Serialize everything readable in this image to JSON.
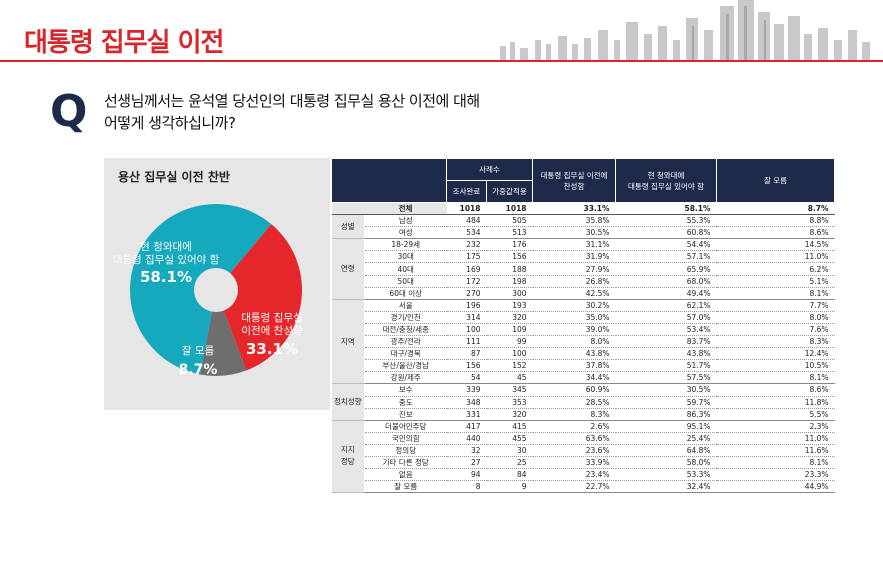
{
  "page_title": "대통령 집무실 이전",
  "question": {
    "mark": "Q",
    "line1": "선생님께서는 윤석열 당선인의 대통령 집무실 용산 이전에 대해",
    "line2": "어떻게 생각하십니까?"
  },
  "colors": {
    "accent": "#d7262c",
    "navy": "#1e2a4a",
    "teal": "#16a8bd",
    "red": "#e5262b",
    "gray": "#6e6e6e"
  },
  "pie": {
    "title": "용산 집무실 이전 찬반",
    "slices": [
      {
        "label_lines": [
          "현 청와대에",
          "대통령 집무실 있어야 함"
        ],
        "pct_text": "58.1%",
        "value": 58.1,
        "color": "#16a8bd"
      },
      {
        "label_lines": [
          "대통령 집무실",
          "이전에 찬성함"
        ],
        "pct_text": "33.1%",
        "value": 33.1,
        "color": "#e5262b"
      },
      {
        "label_lines": [
          "잘 모름"
        ],
        "pct_text": "8.7%",
        "value": 8.7,
        "color": "#6e6e6e"
      }
    ]
  },
  "table": {
    "header": {
      "sample": "사례수",
      "completed": "조사완료",
      "weighted": "가중값적용",
      "col_agree": [
        "대통령 집무실 이전에",
        "찬성함"
      ],
      "col_stay": [
        "현 청와대에",
        "대통령 집무실 있어야 함"
      ],
      "col_unknown": "잘 모름"
    },
    "total": {
      "label": "전체",
      "cells": [
        "1018",
        "1018",
        "33.1%",
        "58.1%",
        "8.7%"
      ]
    },
    "groups": [
      {
        "name": "성별",
        "rows": [
          {
            "label": "남성",
            "cells": [
              "484",
              "505",
              "35.8%",
              "55.3%",
              "8.8%"
            ]
          },
          {
            "label": "여성",
            "cells": [
              "534",
              "513",
              "30.5%",
              "60.8%",
              "8.6%"
            ]
          }
        ]
      },
      {
        "name": "연령",
        "rows": [
          {
            "label": "18-29세",
            "cells": [
              "232",
              "176",
              "31.1%",
              "54.4%",
              "14.5%"
            ]
          },
          {
            "label": "30대",
            "cells": [
              "175",
              "156",
              "31.9%",
              "57.1%",
              "11.0%"
            ]
          },
          {
            "label": "40대",
            "cells": [
              "169",
              "188",
              "27.9%",
              "65.9%",
              "6.2%"
            ]
          },
          {
            "label": "50대",
            "cells": [
              "172",
              "198",
              "26.8%",
              "68.0%",
              "5.1%"
            ]
          },
          {
            "label": "60대 이상",
            "cells": [
              "270",
              "300",
              "42.5%",
              "49.4%",
              "8.1%"
            ]
          }
        ]
      },
      {
        "name": "지역",
        "rows": [
          {
            "label": "서울",
            "cells": [
              "196",
              "193",
              "30.2%",
              "62.1%",
              "7.7%"
            ]
          },
          {
            "label": "경기/인천",
            "cells": [
              "314",
              "320",
              "35.0%",
              "57.0%",
              "8.0%"
            ]
          },
          {
            "label": "대전/충청/세종",
            "cells": [
              "100",
              "109",
              "39.0%",
              "53.4%",
              "7.6%"
            ]
          },
          {
            "label": "광주/전라",
            "cells": [
              "111",
              "99",
              "8.0%",
              "83.7%",
              "8.3%"
            ]
          },
          {
            "label": "대구/경북",
            "cells": [
              "87",
              "100",
              "43.8%",
              "43.8%",
              "12.4%"
            ]
          },
          {
            "label": "부산/울산/경남",
            "cells": [
              "156",
              "152",
              "37.8%",
              "51.7%",
              "10.5%"
            ]
          },
          {
            "label": "강원/제주",
            "cells": [
              "54",
              "45",
              "34.4%",
              "57.5%",
              "8.1%"
            ]
          }
        ]
      },
      {
        "name": "정치성향",
        "rows": [
          {
            "label": "보수",
            "cells": [
              "339",
              "345",
              "60.9%",
              "30.5%",
              "8.6%"
            ]
          },
          {
            "label": "중도",
            "cells": [
              "348",
              "353",
              "28.5%",
              "59.7%",
              "11.8%"
            ]
          },
          {
            "label": "진보",
            "cells": [
              "331",
              "320",
              "8.3%",
              "86.3%",
              "5.5%"
            ]
          }
        ]
      },
      {
        "name": "지지\n정당",
        "rows": [
          {
            "label": "더불어민주당",
            "cells": [
              "417",
              "415",
              "2.6%",
              "95.1%",
              "2.3%"
            ]
          },
          {
            "label": "국민의힘",
            "cells": [
              "440",
              "455",
              "63.6%",
              "25.4%",
              "11.0%"
            ]
          },
          {
            "label": "정의당",
            "cells": [
              "32",
              "30",
              "23.6%",
              "64.8%",
              "11.6%"
            ]
          },
          {
            "label": "기타 다른 정당",
            "cells": [
              "27",
              "25",
              "33.9%",
              "58.0%",
              "8.1%"
            ]
          },
          {
            "label": "없음",
            "cells": [
              "94",
              "84",
              "23.4%",
              "53.3%",
              "23.3%"
            ]
          },
          {
            "label": "잘 모름",
            "cells": [
              "8",
              "9",
              "22.7%",
              "32.4%",
              "44.9%"
            ]
          }
        ]
      }
    ]
  },
  "chart_data": {
    "type": "pie",
    "title": "용산 집무실 이전 찬반",
    "categories": [
      "현 청와대에 대통령 집무실 있어야 함",
      "대통령 집무실 이전에 찬성함",
      "잘 모름"
    ],
    "values": [
      58.1,
      33.1,
      8.7
    ]
  }
}
